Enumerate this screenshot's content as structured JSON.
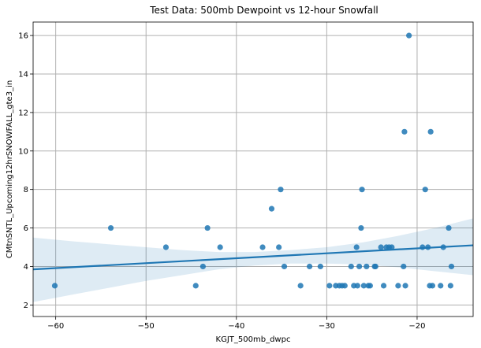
{
  "chart_data": {
    "type": "scatter",
    "title": "Test Data: 500mb Dewpoint vs 12-hour Snowfall",
    "xlabel": "KGJT_500mb_dwpc",
    "ylabel": "CMtnSNTL_Upcoming12hrSNOWFALL_gte3_in",
    "xlim": [
      -62.5,
      -13.8
    ],
    "ylim": [
      1.4,
      16.7
    ],
    "xticks": [
      -60,
      -50,
      -40,
      -30,
      -20
    ],
    "xtick_labels": [
      "−60",
      "−50",
      "−40",
      "−30",
      "−20"
    ],
    "yticks": [
      2,
      4,
      6,
      8,
      10,
      12,
      14,
      16
    ],
    "ytick_labels": [
      "2",
      "4",
      "6",
      "8",
      "10",
      "12",
      "14",
      "16"
    ],
    "grid": true,
    "colors": {
      "points": "#1f77b4",
      "fit_line": "#1f77b4",
      "band": "#1f77b4"
    },
    "points": [
      {
        "x": -60.1,
        "y": 3
      },
      {
        "x": -53.9,
        "y": 6
      },
      {
        "x": -47.8,
        "y": 5
      },
      {
        "x": -44.5,
        "y": 3
      },
      {
        "x": -43.7,
        "y": 4
      },
      {
        "x": -43.2,
        "y": 6
      },
      {
        "x": -41.8,
        "y": 5
      },
      {
        "x": -37.1,
        "y": 5
      },
      {
        "x": -36.1,
        "y": 7
      },
      {
        "x": -35.3,
        "y": 5
      },
      {
        "x": -35.1,
        "y": 8
      },
      {
        "x": -34.7,
        "y": 4
      },
      {
        "x": -32.9,
        "y": 3
      },
      {
        "x": -31.9,
        "y": 4
      },
      {
        "x": -30.7,
        "y": 4
      },
      {
        "x": -29.7,
        "y": 3
      },
      {
        "x": -29.0,
        "y": 3
      },
      {
        "x": -28.6,
        "y": 3
      },
      {
        "x": -28.3,
        "y": 3
      },
      {
        "x": -28.0,
        "y": 3
      },
      {
        "x": -27.3,
        "y": 4
      },
      {
        "x": -27.0,
        "y": 3
      },
      {
        "x": -26.7,
        "y": 5
      },
      {
        "x": -26.6,
        "y": 3
      },
      {
        "x": -26.4,
        "y": 4
      },
      {
        "x": -26.2,
        "y": 6
      },
      {
        "x": -26.1,
        "y": 8
      },
      {
        "x": -25.9,
        "y": 3
      },
      {
        "x": -25.6,
        "y": 4
      },
      {
        "x": -25.4,
        "y": 3
      },
      {
        "x": -25.2,
        "y": 3
      },
      {
        "x": -24.7,
        "y": 4
      },
      {
        "x": -24.6,
        "y": 4
      },
      {
        "x": -24.0,
        "y": 5
      },
      {
        "x": -23.7,
        "y": 3
      },
      {
        "x": -23.4,
        "y": 5
      },
      {
        "x": -23.1,
        "y": 5
      },
      {
        "x": -22.8,
        "y": 5
      },
      {
        "x": -22.1,
        "y": 3
      },
      {
        "x": -21.5,
        "y": 4
      },
      {
        "x": -21.4,
        "y": 11
      },
      {
        "x": -21.3,
        "y": 3
      },
      {
        "x": -20.9,
        "y": 16
      },
      {
        "x": -19.4,
        "y": 5
      },
      {
        "x": -19.1,
        "y": 8
      },
      {
        "x": -18.8,
        "y": 5
      },
      {
        "x": -18.6,
        "y": 3
      },
      {
        "x": -18.5,
        "y": 11
      },
      {
        "x": -18.3,
        "y": 3
      },
      {
        "x": -17.4,
        "y": 3
      },
      {
        "x": -17.1,
        "y": 5
      },
      {
        "x": -16.5,
        "y": 6
      },
      {
        "x": -16.3,
        "y": 3
      },
      {
        "x": -16.2,
        "y": 4
      }
    ],
    "fit_line": {
      "x": [
        -62.5,
        -13.8
      ],
      "y": [
        3.85,
        5.1
      ]
    },
    "confidence_band": {
      "x": [
        -62.5,
        -58,
        -54,
        -50,
        -46,
        -42,
        -38,
        -34,
        -30,
        -26,
        -22,
        -18,
        -13.8
      ],
      "lower": [
        2.15,
        2.55,
        2.9,
        3.25,
        3.55,
        3.85,
        4.05,
        4.15,
        4.15,
        4.1,
        3.95,
        3.75,
        3.55
      ],
      "upper": [
        5.5,
        5.3,
        5.15,
        5.0,
        4.85,
        4.75,
        4.75,
        4.85,
        5.0,
        5.25,
        5.6,
        6.0,
        6.5
      ]
    }
  }
}
